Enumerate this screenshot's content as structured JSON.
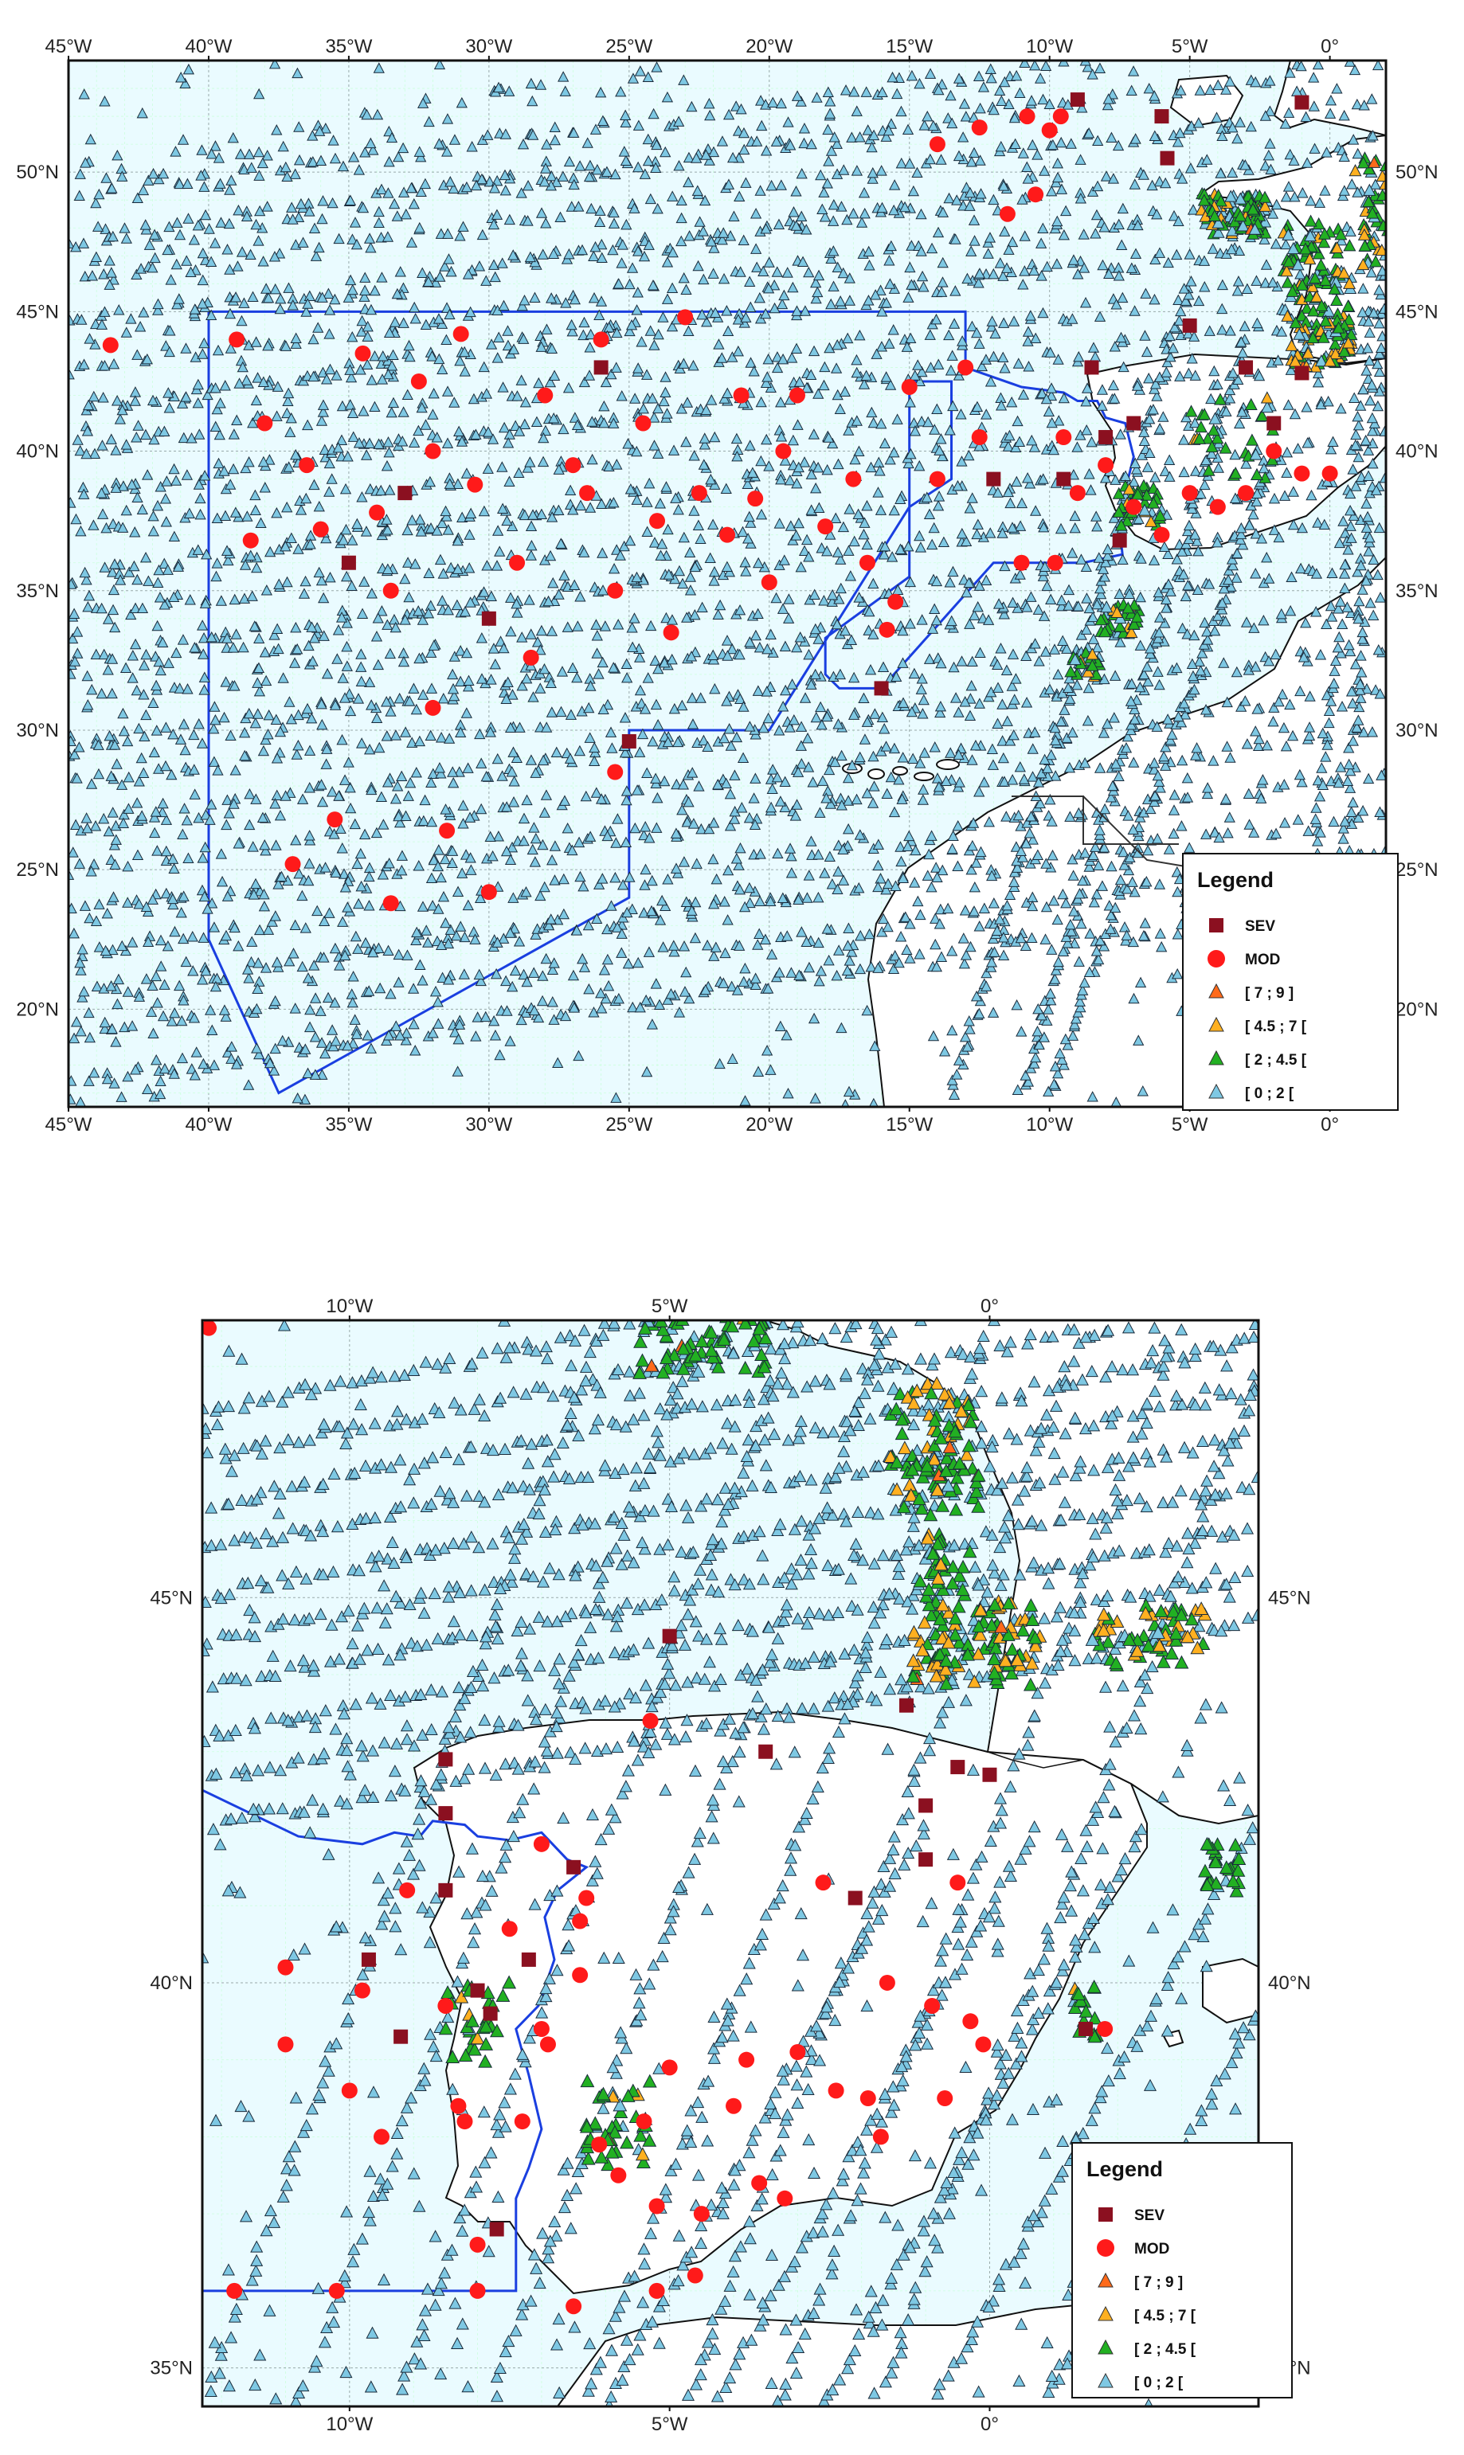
{
  "legend": {
    "title": "Legend",
    "items": [
      {
        "label": "SEV",
        "color": "#8b1020",
        "symbol": "square"
      },
      {
        "label": "MOD",
        "color": "#ff1a1a",
        "symbol": "circle"
      },
      {
        "label": "[ 7 ; 9 ]",
        "color": "#ff6a1a",
        "symbol": "triangle"
      },
      {
        "label": "[ 4.5 ; 7 [",
        "color": "#ffb020",
        "symbol": "triangle"
      },
      {
        "label": "[ 2 ; 4.5 [",
        "color": "#22b022",
        "symbol": "triangle"
      },
      {
        "label": "[ 0 ; 2 [",
        "color": "#7ec8e3",
        "symbol": "triangle"
      }
    ]
  },
  "colors": {
    "sea": "#eafbff",
    "land": "#ffffff",
    "boundary": "#1a3fe0",
    "coast": "#111111"
  },
  "maps": [
    {
      "name": "north-atlantic",
      "lon_range": [
        -45,
        2
      ],
      "lat_range": [
        16.5,
        54
      ],
      "lon_ticks": [
        "45°W",
        "40°W",
        "35°W",
        "30°W",
        "25°W",
        "20°W",
        "15°W",
        "10°W",
        "5°W",
        "0°"
      ],
      "lat_ticks": [
        "20°N",
        "25°N",
        "30°N",
        "35°N",
        "40°N",
        "45°N",
        "50°N"
      ],
      "sev_points": [
        [
          -30,
          34
        ],
        [
          -26,
          43
        ],
        [
          -35,
          36
        ],
        [
          -25,
          29.6
        ],
        [
          -16,
          31.5
        ],
        [
          -8.5,
          43
        ],
        [
          -8,
          40.5
        ],
        [
          -7,
          41
        ],
        [
          -6,
          52
        ],
        [
          -5,
          44.5
        ],
        [
          -3,
          43
        ],
        [
          -2,
          41
        ],
        [
          -1,
          42.8
        ],
        [
          -12,
          39
        ],
        [
          -9,
          52.6
        ],
        [
          -5.8,
          50.5
        ],
        [
          -1,
          52.5
        ],
        [
          -33,
          38.5
        ],
        [
          -9.5,
          39
        ],
        [
          -7.5,
          36.8
        ]
      ],
      "mod_points": [
        [
          -43.5,
          43.8
        ],
        [
          -39,
          44
        ],
        [
          -38.5,
          36.8
        ],
        [
          -38,
          41
        ],
        [
          -37,
          25.2
        ],
        [
          -36.5,
          39.5
        ],
        [
          -36,
          37.2
        ],
        [
          -35.5,
          26.8
        ],
        [
          -34.5,
          43.5
        ],
        [
          -34,
          37.8
        ],
        [
          -33.5,
          35
        ],
        [
          -33.5,
          23.8
        ],
        [
          -32.5,
          42.5
        ],
        [
          -32,
          40
        ],
        [
          -32,
          30.8
        ],
        [
          -31.5,
          26.4
        ],
        [
          -31,
          44.2
        ],
        [
          -30.5,
          38.8
        ],
        [
          -30,
          24.2
        ],
        [
          -29,
          36
        ],
        [
          -28.5,
          32.6
        ],
        [
          -28,
          42
        ],
        [
          -27,
          39.5
        ],
        [
          -26.5,
          38.5
        ],
        [
          -26,
          44
        ],
        [
          -25.5,
          35
        ],
        [
          -25.5,
          28.5
        ],
        [
          -24.5,
          41
        ],
        [
          -24,
          37.5
        ],
        [
          -23.5,
          33.5
        ],
        [
          -23,
          44.8
        ],
        [
          -22.5,
          38.5
        ],
        [
          -21.5,
          37
        ],
        [
          -21,
          42
        ],
        [
          -20.5,
          38.3
        ],
        [
          -20,
          35.3
        ],
        [
          -19.5,
          40
        ],
        [
          -19,
          42
        ],
        [
          -18,
          37.3
        ],
        [
          -17,
          39
        ],
        [
          -16.5,
          36
        ],
        [
          -15.8,
          33.6
        ],
        [
          -15.5,
          34.6
        ],
        [
          -15,
          42.3
        ],
        [
          -14,
          39
        ],
        [
          -13,
          43
        ],
        [
          -12.5,
          40.5
        ],
        [
          -11.5,
          48.5
        ],
        [
          -11,
          36
        ],
        [
          -10.5,
          49.2
        ],
        [
          -10,
          51.5
        ],
        [
          -9.8,
          36
        ],
        [
          -9.5,
          40.5
        ],
        [
          -9,
          38.5
        ],
        [
          -8,
          39.5
        ],
        [
          -7,
          38
        ],
        [
          -6,
          37
        ],
        [
          -5,
          38.5
        ],
        [
          -4,
          38
        ],
        [
          -3,
          38.5
        ],
        [
          -2,
          40
        ],
        [
          -1,
          39.2
        ],
        [
          0,
          39.2
        ],
        [
          -12.5,
          51.6
        ],
        [
          -14,
          51
        ],
        [
          -10.8,
          52
        ],
        [
          -9.6,
          52
        ]
      ],
      "boundary": [
        [
          -40,
          45
        ],
        [
          -13,
          45
        ],
        [
          -13,
          43
        ],
        [
          -11,
          42.3
        ],
        [
          -9.5,
          42.1
        ],
        [
          -9,
          41.8
        ],
        [
          -8.3,
          41.8
        ],
        [
          -8,
          41.2
        ],
        [
          -7.3,
          41
        ],
        [
          -7,
          39.8
        ],
        [
          -7.2,
          39
        ],
        [
          -7.1,
          38.3
        ],
        [
          -7.5,
          37.2
        ],
        [
          -7.4,
          36.3
        ],
        [
          -8.8,
          36
        ],
        [
          -12,
          36
        ],
        [
          -16,
          31.5
        ],
        [
          -17.5,
          31.5
        ],
        [
          -18,
          32
        ],
        [
          -18,
          33.3
        ],
        [
          -15,
          35.5
        ],
        [
          -15,
          42.5
        ],
        [
          -13.5,
          42.5
        ],
        [
          -13.5,
          39
        ],
        [
          -15,
          38
        ],
        [
          -20,
          30
        ],
        [
          -25,
          30
        ],
        [
          -25,
          24
        ],
        [
          -37.5,
          17
        ],
        [
          -40,
          22.5
        ],
        [
          -40,
          45
        ]
      ]
    },
    {
      "name": "iberia",
      "lon_range": [
        -12.3,
        4.2
      ],
      "lat_range": [
        34.5,
        48.6
      ],
      "lon_ticks": [
        "10°W",
        "5°W",
        "0°"
      ],
      "lat_ticks": [
        "35°N",
        "40°N",
        "45°N"
      ],
      "sev_points": [
        [
          -9.7,
          40.3
        ],
        [
          -9.2,
          39.3
        ],
        [
          -8.5,
          42.9
        ],
        [
          -8.5,
          42.2
        ],
        [
          -8.5,
          41.2
        ],
        [
          -8,
          39.9
        ],
        [
          -7.7,
          36.8
        ],
        [
          -7.2,
          40.3
        ],
        [
          -6.5,
          41.5
        ],
        [
          -5,
          44.5
        ],
        [
          -3.5,
          43
        ],
        [
          -2.1,
          41.1
        ],
        [
          -1.3,
          43.6
        ],
        [
          -1,
          42.3
        ],
        [
          -1,
          41.6
        ],
        [
          -0.5,
          42.8
        ],
        [
          0,
          42.7
        ],
        [
          1.5,
          39.4
        ],
        [
          -7.8,
          39.6
        ]
      ],
      "mod_points": [
        [
          -11,
          40.2
        ],
        [
          -11,
          39.2
        ],
        [
          -10,
          38.6
        ],
        [
          -9.8,
          39.9
        ],
        [
          -9.5,
          38
        ],
        [
          -9.1,
          41.2
        ],
        [
          -8.5,
          39.7
        ],
        [
          -8.3,
          38.4
        ],
        [
          -8.2,
          38.2
        ],
        [
          -8,
          36.6
        ],
        [
          -7.5,
          40.7
        ],
        [
          -7.3,
          38.2
        ],
        [
          -7,
          39.4
        ],
        [
          -6.9,
          39.2
        ],
        [
          -7,
          41.8
        ],
        [
          -6.3,
          41.1
        ],
        [
          -6.4,
          40.8
        ],
        [
          -6.4,
          40.1
        ],
        [
          -6.1,
          37.9
        ],
        [
          -5.8,
          37.5
        ],
        [
          -5.4,
          38.2
        ],
        [
          -5.2,
          37.1
        ],
        [
          -5,
          38.9
        ],
        [
          -4.5,
          37
        ],
        [
          -4,
          38.4
        ],
        [
          -3.8,
          39
        ],
        [
          -3.6,
          37.4
        ],
        [
          -3.2,
          37.2
        ],
        [
          -3,
          39.1
        ],
        [
          -2.6,
          41.3
        ],
        [
          -2.4,
          38.6
        ],
        [
          -1.9,
          38.5
        ],
        [
          -1.7,
          38
        ],
        [
          -1.6,
          40
        ],
        [
          -0.7,
          38.5
        ],
        [
          -0.9,
          39.7
        ],
        [
          -0.5,
          41.3
        ],
        [
          -0.3,
          39.5
        ],
        [
          -0.1,
          39.2
        ],
        [
          1.8,
          39.4
        ],
        [
          -6.5,
          35.8
        ],
        [
          -5.2,
          36
        ],
        [
          -4.6,
          36.2
        ],
        [
          -8,
          36
        ],
        [
          -10.2,
          36
        ],
        [
          -11.8,
          36
        ],
        [
          -12.2,
          48.5
        ],
        [
          -5.3,
          43.4
        ]
      ],
      "boundary": [
        [
          -12.3,
          42.5
        ],
        [
          -10.8,
          41.9
        ],
        [
          -9.8,
          41.8
        ],
        [
          -9.3,
          41.95
        ],
        [
          -8.9,
          41.9
        ],
        [
          -8.7,
          42.1
        ],
        [
          -8.2,
          42.05
        ],
        [
          -8,
          41.9
        ],
        [
          -7.5,
          41.85
        ],
        [
          -7,
          41.95
        ],
        [
          -6.6,
          41.6
        ],
        [
          -6.3,
          41.5
        ],
        [
          -6.75,
          41.2
        ],
        [
          -6.95,
          40.85
        ],
        [
          -6.8,
          40.3
        ],
        [
          -7.05,
          39.7
        ],
        [
          -7.4,
          39.4
        ],
        [
          -7.2,
          38.8
        ],
        [
          -7,
          38.1
        ],
        [
          -7.2,
          37.6
        ],
        [
          -7.4,
          37.2
        ],
        [
          -7.4,
          36
        ],
        [
          -12.3,
          36
        ]
      ]
    }
  ]
}
